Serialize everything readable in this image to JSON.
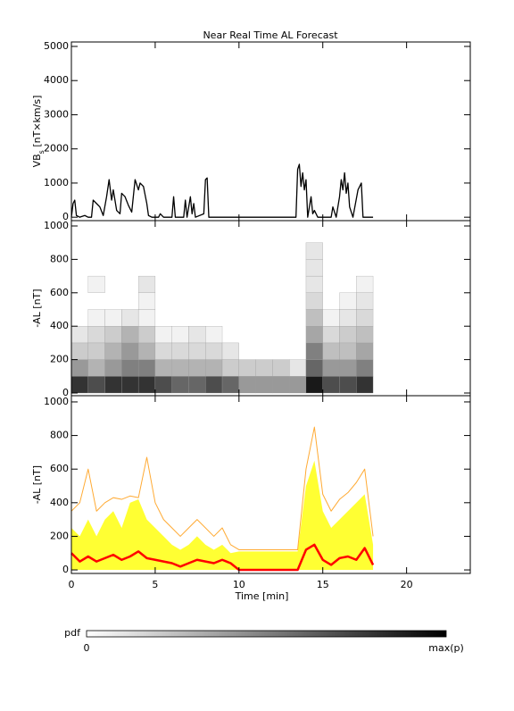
{
  "chart_data": [
    {
      "type": "line",
      "title": "Near Real Time AL Forecast",
      "ylabel": [
        "VB",
        "s",
        " [nT×km/s]"
      ],
      "xlim": [
        0,
        23.8
      ],
      "xticks": [
        0,
        5,
        10,
        15,
        20
      ],
      "ylim": [
        -100,
        5130
      ],
      "yticks": [
        0,
        1000,
        2000,
        3000,
        4000,
        5000
      ],
      "series": [
        {
          "color": "#000000",
          "x": [
            0,
            0.1,
            0.2,
            0.3,
            0.5,
            0.8,
            1,
            1.2,
            1.3,
            1.5,
            1.7,
            1.9,
            2.1,
            2.25,
            2.4,
            2.5,
            2.7,
            2.9,
            3.0,
            3.2,
            3.4,
            3.6,
            3.8,
            4.0,
            4.1,
            4.3,
            4.5,
            4.6,
            4.8,
            5.2,
            5.3,
            5.5,
            6,
            6.1,
            6.2,
            6.7,
            6.8,
            6.9,
            7.1,
            7.2,
            7.3,
            7.4,
            7.9,
            8.0,
            8.1,
            8.2,
            13.4,
            13.5,
            13.6,
            13.7,
            13.8,
            13.9,
            14.0,
            14.1,
            14.3,
            14.4,
            14.5,
            14.7,
            15.5,
            15.6,
            15.8,
            16.0,
            16.1,
            16.2,
            16.3,
            16.4,
            16.5,
            16.6,
            16.8,
            17.1,
            17.3,
            17.4,
            18
          ],
          "values": [
            0,
            400,
            500,
            50,
            0,
            50,
            0,
            0,
            500,
            400,
            300,
            50,
            600,
            1100,
            500,
            800,
            200,
            100,
            700,
            600,
            350,
            150,
            1100,
            800,
            1000,
            900,
            400,
            50,
            0,
            0,
            100,
            0,
            0,
            600,
            0,
            0,
            500,
            0,
            600,
            100,
            400,
            0,
            100,
            1100,
            1150,
            0,
            0,
            1400,
            1550,
            900,
            1300,
            800,
            1100,
            0,
            600,
            100,
            200,
            0,
            0,
            300,
            0,
            600,
            1100,
            800,
            1300,
            700,
            1000,
            300,
            0,
            800,
            1000,
            0,
            0
          ]
        }
      ]
    },
    {
      "type": "heatmap",
      "ylabel": [
        "-AL [nT]"
      ],
      "xlim": [
        0,
        23.8
      ],
      "xticks": [
        0,
        5,
        10,
        15,
        20
      ],
      "ylim": [
        -16,
        1032
      ],
      "yticks": [
        0,
        200,
        400,
        600,
        800,
        1000
      ],
      "x_bins": [
        0,
        1,
        2,
        3,
        4,
        5,
        6,
        7,
        8,
        9,
        10,
        11,
        12,
        13,
        14,
        15,
        16,
        17,
        18
      ],
      "y_bins": [
        0,
        100,
        200,
        300,
        400,
        500,
        600,
        700,
        800,
        900
      ],
      "z": [
        [
          0.8,
          0.7,
          0.8,
          0.8,
          0.8,
          0.7,
          0.6,
          0.6,
          0.7,
          0.6,
          0.4,
          0.4,
          0.4,
          0.4,
          0.9,
          0.7,
          0.7,
          0.8
        ],
        [
          0.4,
          0.3,
          0.4,
          0.5,
          0.5,
          0.3,
          0.3,
          0.3,
          0.3,
          0.2,
          0.2,
          0.2,
          0.2,
          0.1,
          0.6,
          0.4,
          0.4,
          0.5
        ],
        [
          0.2,
          0.2,
          0.3,
          0.4,
          0.3,
          0.15,
          0.15,
          0.15,
          0.15,
          0.1,
          0,
          0,
          0,
          0,
          0.5,
          0.25,
          0.25,
          0.35
        ],
        [
          0.1,
          0.15,
          0.2,
          0.3,
          0.2,
          0.05,
          0.05,
          0.1,
          0.05,
          0,
          0,
          0,
          0,
          0,
          0.35,
          0.15,
          0.2,
          0.25
        ],
        [
          0,
          0.05,
          0.05,
          0.1,
          0.05,
          0,
          0,
          0,
          0,
          0,
          0,
          0,
          0,
          0,
          0.25,
          0.05,
          0.1,
          0.15
        ],
        [
          0,
          0,
          0,
          0,
          0.05,
          0,
          0,
          0,
          0,
          0,
          0,
          0,
          0,
          0,
          0.15,
          0,
          0.05,
          0.1
        ],
        [
          0,
          0.05,
          0,
          0,
          0.1,
          0,
          0,
          0,
          0,
          0,
          0,
          0,
          0,
          0,
          0.1,
          0,
          0,
          0.05
        ],
        [
          0,
          0,
          0,
          0,
          0,
          0,
          0,
          0,
          0,
          0,
          0,
          0,
          0,
          0,
          0.1,
          0,
          0,
          0
        ],
        [
          0,
          0,
          0,
          0,
          0,
          0,
          0,
          0,
          0,
          0,
          0,
          0,
          0,
          0,
          0.1,
          0,
          0,
          0
        ]
      ]
    },
    {
      "type": "line",
      "ylabel": [
        "-AL [nT]"
      ],
      "xlabel": "Time [min]",
      "xlim": [
        0,
        23.8
      ],
      "xticks": [
        0,
        5,
        10,
        15,
        20
      ],
      "ylim": [
        -21,
        1037
      ],
      "yticks": [
        0,
        200,
        400,
        600,
        800,
        1000
      ],
      "x": [
        0,
        0.5,
        1,
        1.5,
        2,
        2.5,
        3,
        3.5,
        4,
        4.5,
        5,
        5.5,
        6,
        6.5,
        7,
        7.5,
        8,
        8.5,
        9,
        9.5,
        10,
        10.5,
        11,
        11.5,
        12,
        12.5,
        13,
        13.5,
        14,
        14.5,
        15,
        15.5,
        16,
        16.5,
        17,
        17.5,
        18
      ],
      "series": [
        {
          "kind": "area",
          "color": "#ffff33",
          "values": [
            250,
            200,
            300,
            200,
            300,
            350,
            250,
            400,
            420,
            300,
            250,
            200,
            150,
            120,
            150,
            200,
            150,
            120,
            150,
            100,
            110,
            110,
            110,
            110,
            110,
            110,
            110,
            110,
            500,
            650,
            350,
            250,
            300,
            350,
            400,
            450,
            150
          ]
        },
        {
          "kind": "line",
          "color": "#ffaa33",
          "values": [
            350,
            400,
            600,
            350,
            400,
            430,
            420,
            440,
            430,
            670,
            400,
            300,
            250,
            200,
            250,
            300,
            250,
            200,
            250,
            150,
            120,
            120,
            120,
            120,
            120,
            120,
            120,
            120,
            600,
            850,
            450,
            350,
            420,
            460,
            520,
            600,
            200
          ]
        },
        {
          "kind": "line",
          "color": "#ff0000",
          "values": [
            100,
            50,
            80,
            50,
            70,
            90,
            60,
            80,
            110,
            70,
            60,
            50,
            40,
            20,
            40,
            60,
            50,
            40,
            60,
            40,
            0,
            0,
            0,
            0,
            0,
            0,
            0,
            0,
            120,
            150,
            60,
            30,
            70,
            80,
            60,
            130,
            30
          ]
        }
      ]
    }
  ],
  "colorbar": {
    "label": "pdf",
    "min_label": "0",
    "max_label": "max(p)"
  }
}
